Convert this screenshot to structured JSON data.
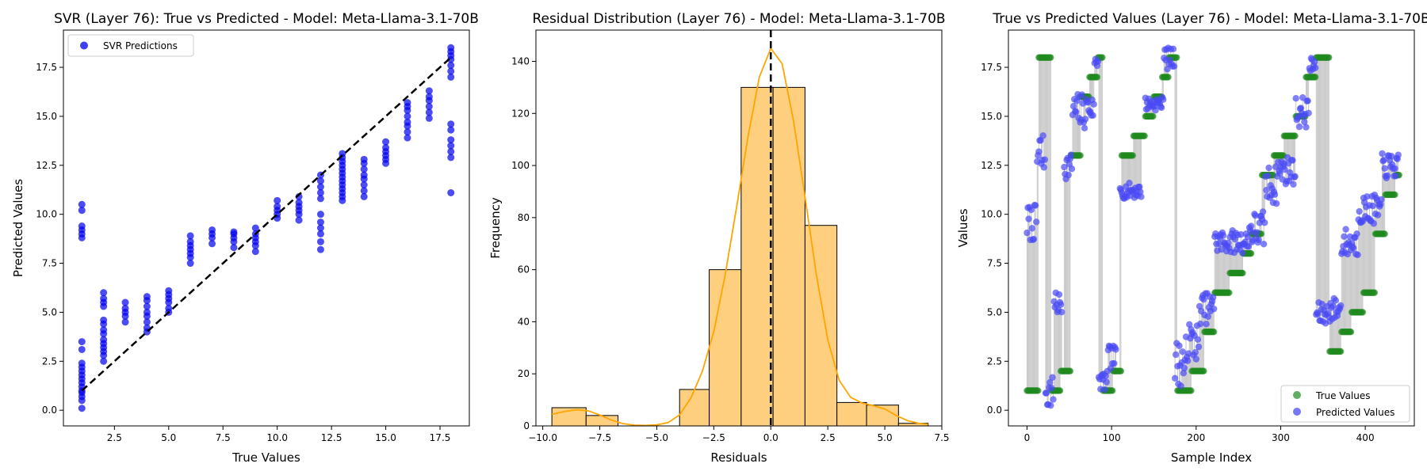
{
  "chart_data": [
    {
      "type": "scatter",
      "title": "SVR (Layer 76): True vs Predicted - Model: Meta-Llama-3.1-70B",
      "xlabel": "True Values",
      "ylabel": "Predicted Values",
      "xlim": [
        0.15,
        18.85
      ],
      "ylim": [
        -0.8,
        19.4
      ],
      "xticks": [
        2.5,
        5.0,
        7.5,
        10.0,
        12.5,
        15.0,
        17.5
      ],
      "yticks": [
        0.0,
        2.5,
        5.0,
        7.5,
        10.0,
        12.5,
        15.0,
        17.5
      ],
      "legend": {
        "position": "upper-left",
        "entries": [
          "SVR Predictions"
        ]
      },
      "series": [
        {
          "name": "SVR Predictions",
          "color": "#0000ee",
          "groups": [
            {
              "x": 1,
              "y": [
                0.1,
                0.5,
                0.7,
                0.9,
                1.0,
                1.2,
                1.4,
                1.6,
                1.8,
                2.0,
                2.2,
                2.4,
                3.1,
                3.5,
                8.8,
                9.0,
                9.2,
                9.4,
                10.2,
                10.5
              ]
            },
            {
              "x": 2,
              "y": [
                2.5,
                2.8,
                3.0,
                3.2,
                3.4,
                3.6,
                3.9,
                4.1,
                4.4,
                4.6,
                5.3,
                5.5,
                5.7,
                6.0
              ]
            },
            {
              "x": 3,
              "y": [
                4.5,
                4.8,
                5.0,
                5.2,
                5.5
              ]
            },
            {
              "x": 4,
              "y": [
                4.0,
                4.2,
                4.5,
                4.8,
                5.0,
                5.3,
                5.6,
                5.8
              ]
            },
            {
              "x": 5,
              "y": [
                5.0,
                5.2,
                5.5,
                5.7,
                5.9,
                6.1
              ]
            },
            {
              "x": 6,
              "y": [
                7.5,
                7.8,
                8.0,
                8.2,
                8.4,
                8.6,
                8.9
              ]
            },
            {
              "x": 7,
              "y": [
                8.5,
                8.8,
                9.0,
                9.2
              ]
            },
            {
              "x": 8,
              "y": [
                8.3,
                8.6,
                8.8,
                9.0,
                9.1
              ]
            },
            {
              "x": 9,
              "y": [
                8.1,
                8.4,
                8.6,
                8.8,
                9.0,
                9.3
              ]
            },
            {
              "x": 10,
              "y": [
                9.8,
                10.0,
                10.2,
                10.4,
                10.7
              ]
            },
            {
              "x": 11,
              "y": [
                9.7,
                10.0,
                10.2,
                10.4,
                10.6,
                10.9
              ]
            },
            {
              "x": 12,
              "y": [
                8.2,
                8.6,
                9.0,
                9.3,
                9.6,
                10.0,
                10.8,
                11.1,
                11.4,
                11.7,
                12.0
              ]
            },
            {
              "x": 13,
              "y": [
                10.7,
                10.9,
                11.1,
                11.3,
                11.5,
                11.7,
                11.9,
                12.1,
                12.3,
                12.5,
                12.7,
                12.9,
                13.1
              ]
            },
            {
              "x": 14,
              "y": [
                10.9,
                11.2,
                11.5,
                11.8,
                12.0,
                12.3,
                12.6,
                12.8
              ]
            },
            {
              "x": 15,
              "y": [
                12.6,
                12.8,
                13.0,
                13.2,
                13.4,
                13.7
              ]
            },
            {
              "x": 16,
              "y": [
                13.9,
                14.2,
                14.5,
                14.7,
                15.0,
                15.3,
                15.5,
                15.7
              ]
            },
            {
              "x": 17,
              "y": [
                14.9,
                15.2,
                15.5,
                15.8,
                16.0,
                16.3
              ]
            },
            {
              "x": 18,
              "y": [
                11.1,
                12.9,
                13.2,
                13.5,
                13.8,
                14.3,
                14.6,
                17.0,
                17.3,
                17.6,
                17.9,
                18.1,
                18.3,
                18.5
              ]
            }
          ]
        }
      ],
      "reference_line": {
        "from": [
          1,
          1
        ],
        "to": [
          18,
          18
        ],
        "style": "dashed",
        "color": "#000000"
      }
    },
    {
      "type": "histogram",
      "title": "Residual Distribution (Layer 76) - Model: Meta-Llama-3.1-70B",
      "xlabel": "Residuals",
      "ylabel": "Frequency",
      "xlim": [
        -10.3,
        7.5
      ],
      "ylim": [
        0,
        152
      ],
      "xticks": [
        -10.0,
        -7.5,
        -5.0,
        -2.5,
        0.0,
        2.5,
        5.0,
        7.5
      ],
      "yticks": [
        0,
        20,
        40,
        60,
        80,
        100,
        120,
        140
      ],
      "bin_edges": [
        -9.6,
        -8.1,
        -6.7,
        -5.4,
        -4.0,
        -2.7,
        -1.3,
        0.1,
        1.5,
        2.9,
        4.2,
        5.6,
        6.9
      ],
      "counts": [
        7,
        4,
        0,
        0,
        14,
        60,
        130,
        130,
        77,
        9,
        8,
        1
      ],
      "bar_color": "#fecf7f",
      "kde_color": "#ffa500",
      "kde": {
        "x": [
          -9.6,
          -9.0,
          -8.5,
          -8.0,
          -7.5,
          -7.0,
          -6.5,
          -6.0,
          -5.5,
          -5.0,
          -4.5,
          -4.0,
          -3.5,
          -3.0,
          -2.5,
          -2.0,
          -1.5,
          -1.0,
          -0.5,
          0.0,
          0.5,
          1.0,
          1.5,
          2.0,
          2.5,
          3.0,
          3.5,
          4.0,
          4.5,
          5.0,
          5.5,
          6.0,
          6.5,
          6.9
        ],
        "y": [
          4.5,
          5.6,
          6.2,
          5.8,
          4.2,
          2.3,
          0.9,
          0.3,
          0.2,
          0.4,
          1.3,
          4.2,
          10.8,
          21.0,
          36.2,
          58.0,
          84.0,
          111.0,
          134.0,
          145.0,
          139.0,
          117.0,
          88.0,
          58.0,
          33.0,
          17.5,
          11.0,
          8.8,
          7.8,
          6.5,
          4.0,
          2.0,
          1.0,
          0.6
        ]
      },
      "vline": {
        "x": 0,
        "style": "dashed",
        "color": "#000000"
      }
    },
    {
      "type": "scatter",
      "title": "True vs Predicted Values (Layer 76) - Model: Meta-Llama-3.1-70B",
      "xlabel": "Sample Index",
      "ylabel": "Values",
      "xlim": [
        -22,
        458
      ],
      "ylim": [
        -0.8,
        19.4
      ],
      "xticks": [
        0,
        100,
        200,
        300,
        400
      ],
      "yticks": [
        0.0,
        2.5,
        5.0,
        7.5,
        10.0,
        12.5,
        15.0,
        17.5
      ],
      "legend": {
        "position": "lower-right",
        "entries": [
          "True Values",
          "Predicted Values"
        ]
      },
      "segments": [
        {
          "start": 0,
          "end": 14,
          "true": 1
        },
        {
          "start": 14,
          "end": 29,
          "true": 18
        },
        {
          "start": 29,
          "end": 40,
          "true": 1
        },
        {
          "start": 40,
          "end": 52,
          "true": 2
        },
        {
          "start": 52,
          "end": 64,
          "true": 13
        },
        {
          "start": 64,
          "end": 74,
          "true": 16
        },
        {
          "start": 74,
          "end": 84,
          "true": 17
        },
        {
          "start": 84,
          "end": 90,
          "true": 18
        },
        {
          "start": 90,
          "end": 102,
          "true": 1
        },
        {
          "start": 102,
          "end": 112,
          "true": 2
        },
        {
          "start": 112,
          "end": 126,
          "true": 13
        },
        {
          "start": 126,
          "end": 140,
          "true": 14
        },
        {
          "start": 140,
          "end": 150,
          "true": 15
        },
        {
          "start": 150,
          "end": 160,
          "true": 16
        },
        {
          "start": 160,
          "end": 168,
          "true": 17
        },
        {
          "start": 168,
          "end": 178,
          "true": 18
        },
        {
          "start": 178,
          "end": 195,
          "true": 1
        },
        {
          "start": 195,
          "end": 210,
          "true": 2
        },
        {
          "start": 210,
          "end": 222,
          "true": 4
        },
        {
          "start": 222,
          "end": 240,
          "true": 6
        },
        {
          "start": 240,
          "end": 256,
          "true": 7
        },
        {
          "start": 256,
          "end": 266,
          "true": 8
        },
        {
          "start": 266,
          "end": 278,
          "true": 9
        },
        {
          "start": 278,
          "end": 292,
          "true": 12
        },
        {
          "start": 292,
          "end": 304,
          "true": 13
        },
        {
          "start": 304,
          "end": 318,
          "true": 14
        },
        {
          "start": 318,
          "end": 330,
          "true": 15
        },
        {
          "start": 330,
          "end": 342,
          "true": 17
        },
        {
          "start": 342,
          "end": 358,
          "true": 18
        },
        {
          "start": 358,
          "end": 372,
          "true": 3
        },
        {
          "start": 372,
          "end": 384,
          "true": 4
        },
        {
          "start": 384,
          "end": 398,
          "true": 5
        },
        {
          "start": 398,
          "end": 412,
          "true": 6
        },
        {
          "start": 412,
          "end": 424,
          "true": 9
        },
        {
          "start": 424,
          "end": 436,
          "true": 11
        },
        {
          "start": 436,
          "end": 441,
          "true": 12
        }
      ],
      "predicted": [
        {
          "start": 0,
          "end": 12,
          "lo": 8.6,
          "hi": 10.5
        },
        {
          "start": 12,
          "end": 29,
          "lo": 11.2,
          "hi": 14.5
        },
        {
          "start": 22,
          "end": 40,
          "lo": 0.1,
          "hi": 1.8
        },
        {
          "start": 32,
          "end": 42,
          "lo": 4.8,
          "hi": 6.0
        },
        {
          "start": 44,
          "end": 54,
          "lo": 11.8,
          "hi": 13.2
        },
        {
          "start": 54,
          "end": 74,
          "lo": 14.3,
          "hi": 16.2
        },
        {
          "start": 72,
          "end": 82,
          "lo": 14.8,
          "hi": 16.0
        },
        {
          "start": 80,
          "end": 90,
          "lo": 17.5,
          "hi": 18.3
        },
        {
          "start": 85,
          "end": 100,
          "lo": 1.0,
          "hi": 2.0
        },
        {
          "start": 96,
          "end": 106,
          "lo": 2.1,
          "hi": 3.3
        },
        {
          "start": 110,
          "end": 136,
          "lo": 10.8,
          "hi": 11.6
        },
        {
          "start": 140,
          "end": 150,
          "lo": 15.3,
          "hi": 16.0
        },
        {
          "start": 150,
          "end": 166,
          "lo": 15.3,
          "hi": 16.0
        },
        {
          "start": 162,
          "end": 178,
          "lo": 17.4,
          "hi": 18.5
        },
        {
          "start": 175,
          "end": 190,
          "lo": 1.2,
          "hi": 3.6
        },
        {
          "start": 188,
          "end": 206,
          "lo": 2.5,
          "hi": 4.5
        },
        {
          "start": 204,
          "end": 226,
          "lo": 4.4,
          "hi": 6.0
        },
        {
          "start": 222,
          "end": 262,
          "lo": 8.0,
          "hi": 9.2
        },
        {
          "start": 262,
          "end": 282,
          "lo": 8.2,
          "hi": 10.2
        },
        {
          "start": 282,
          "end": 296,
          "lo": 10.5,
          "hi": 12.5
        },
        {
          "start": 296,
          "end": 318,
          "lo": 11.5,
          "hi": 13.0
        },
        {
          "start": 318,
          "end": 334,
          "lo": 14.4,
          "hi": 16.0
        },
        {
          "start": 334,
          "end": 342,
          "lo": 17.2,
          "hi": 18.0
        },
        {
          "start": 342,
          "end": 356,
          "lo": 4.3,
          "hi": 5.5
        },
        {
          "start": 356,
          "end": 372,
          "lo": 4.5,
          "hi": 5.8
        },
        {
          "start": 372,
          "end": 392,
          "lo": 7.8,
          "hi": 9.3
        },
        {
          "start": 392,
          "end": 420,
          "lo": 9.5,
          "hi": 11.0
        },
        {
          "start": 420,
          "end": 440,
          "lo": 11.8,
          "hi": 13.1
        }
      ],
      "colors": {
        "true": "#1e8a1e",
        "predicted": "#4a4af5",
        "connector": "#c8c8c8"
      }
    }
  ]
}
